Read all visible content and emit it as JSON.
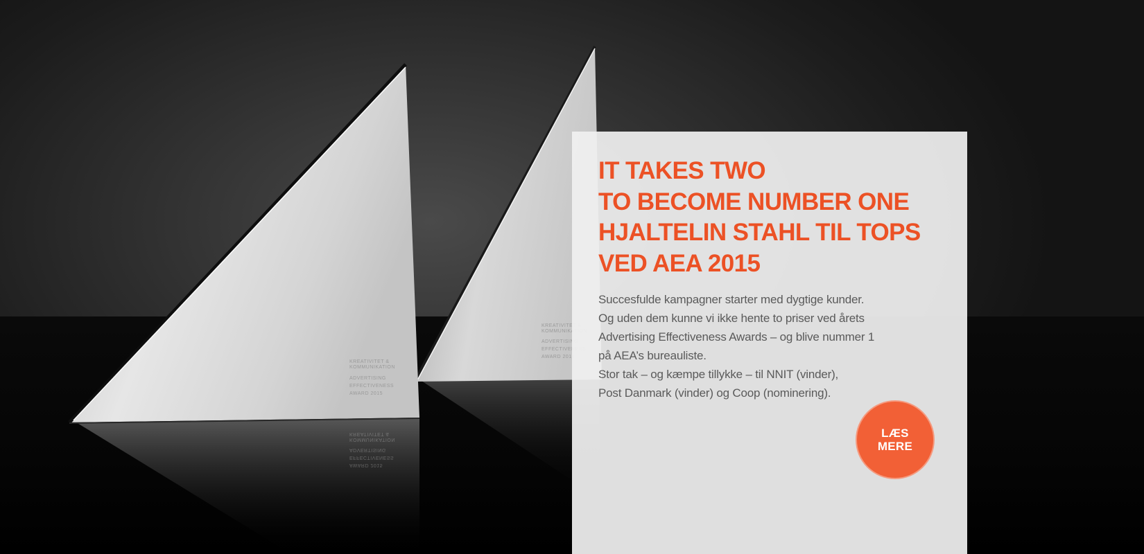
{
  "hero": {
    "image_alt": "Two silver triangular Advertising Effectiveness Award 2015 trophies on a reflective black surface",
    "trophy_engraving": [
      "KREATIVITET &",
      "KOMMUNIKATION",
      "ADVERTISING",
      "EFFECTIVENESS",
      "AWARD 2015"
    ]
  },
  "card": {
    "headline_lines": [
      "IT TAKES TWO",
      "TO BECOME NUMBER ONE",
      "HJALTELIN STAHL TIL TOPS",
      "VED AEA 2015"
    ],
    "body_lines": [
      "Succesfulde kampagner starter med dygtige kunder.",
      "Og uden dem kunne vi ikke hente to priser ved årets",
      "Advertising Effectiveness Awards – og blive nummer 1",
      "på AEA’s bureauliste.",
      "Stor tak – og kæmpe tillykke – til NNIT (vinder),",
      "Post Danmark (vinder) og Coop (nominering)."
    ],
    "cta": {
      "line1": "LÆS",
      "line2": "MERE"
    }
  },
  "colors": {
    "accent": "#ec5125",
    "button": "#f26036",
    "body_text": "#5a5a5a",
    "card_background": "#f0f0f0"
  }
}
